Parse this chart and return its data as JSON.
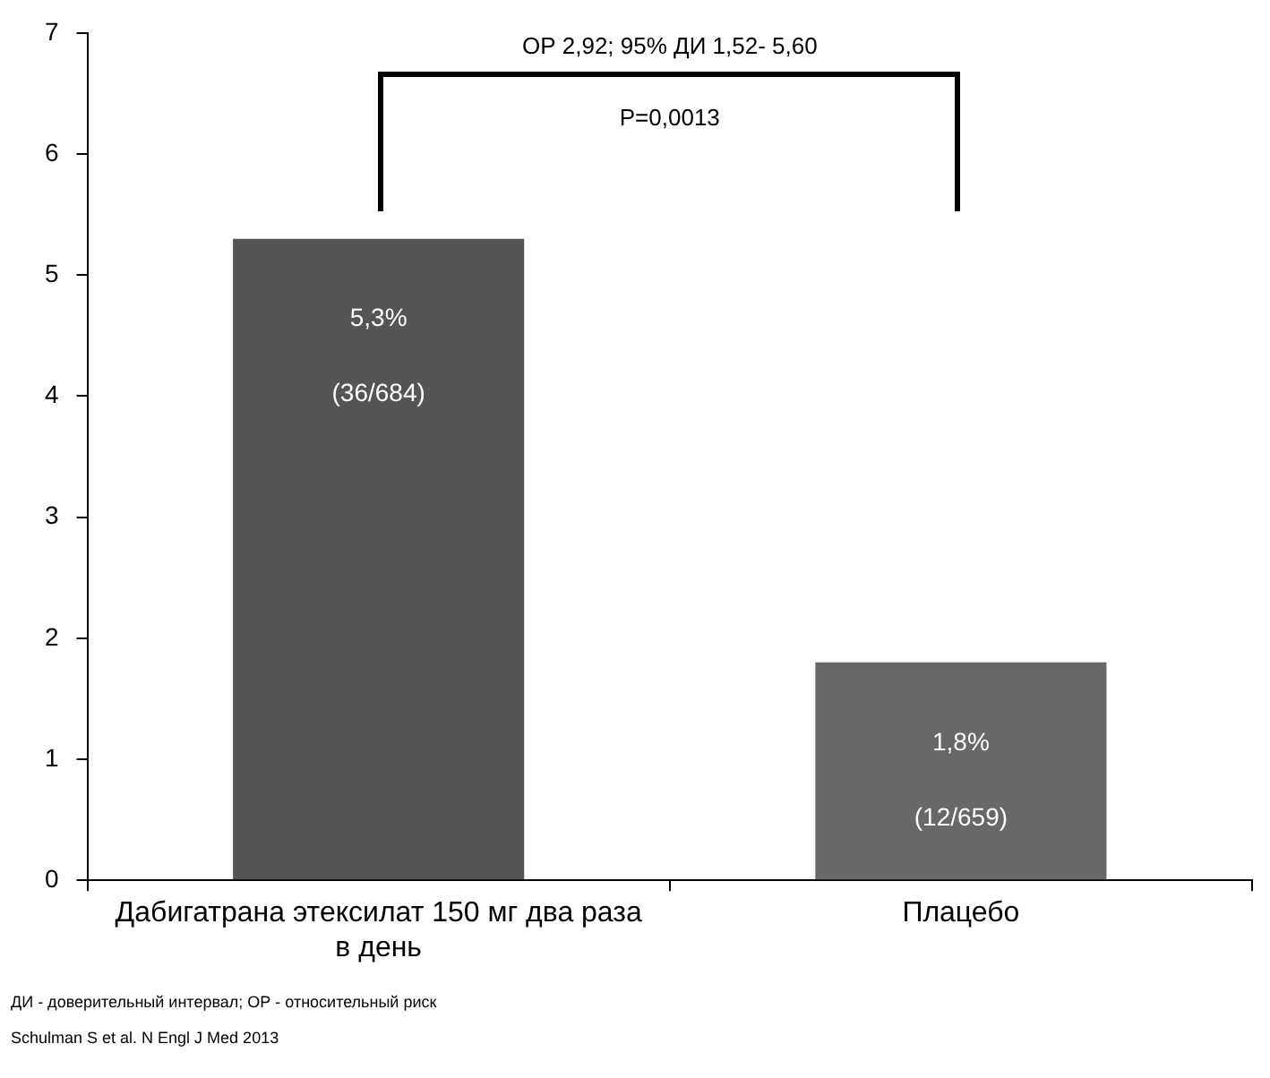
{
  "chart_data": {
    "type": "bar",
    "categories": [
      "Дабигатрана этексилат 150 мг два раза в день",
      "Плацебо"
    ],
    "values": [
      5.3,
      1.8
    ],
    "colors": [
      "#555555",
      "#686868"
    ],
    "value_labels": [
      "5,3%\n(36/684)",
      "1,8%\n(12/659)"
    ],
    "ylim": [
      0,
      7
    ],
    "yticks": [
      0,
      1,
      2,
      3,
      4,
      5,
      6,
      7
    ],
    "grid": false,
    "legend": false,
    "annotations": [
      "ОР 2,92; 95% ДИ 1,52- 5,60",
      "Р=0,0013",
      "ДИ - доверительный интервал; ОР - относительный риск",
      "Schulman S et al. N Engl J Med 2013"
    ]
  }
}
